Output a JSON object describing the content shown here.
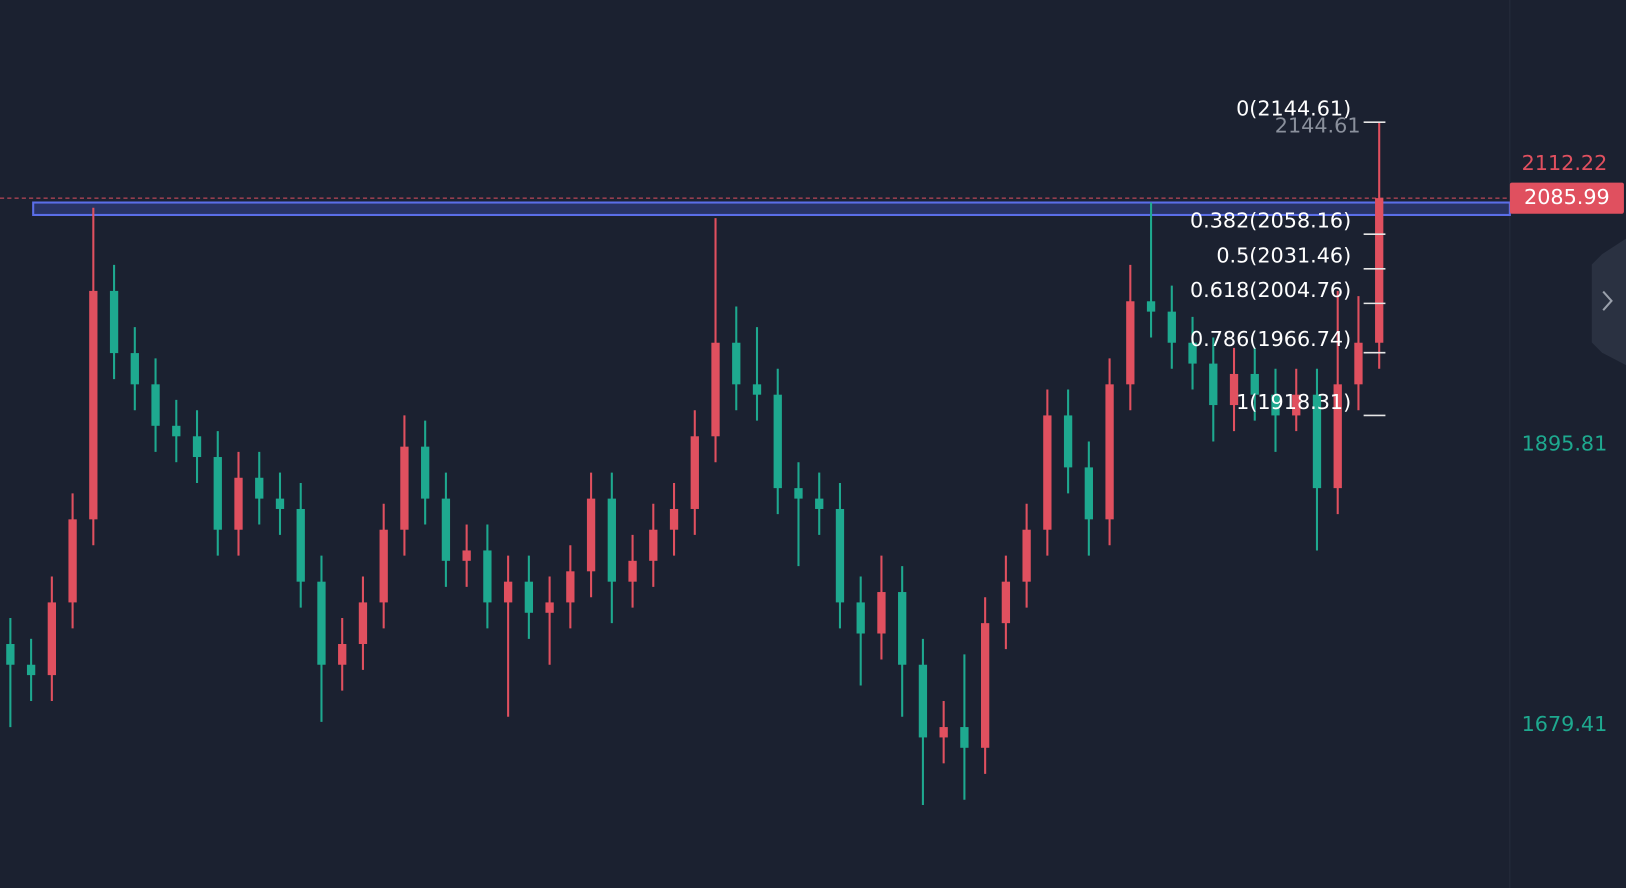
{
  "chart_data": {
    "type": "candlestick",
    "categories": [
      null,
      null,
      null,
      null,
      null,
      null,
      null,
      null,
      null,
      null,
      null,
      null,
      null,
      null,
      null,
      null,
      null,
      null,
      null,
      null,
      null,
      null,
      null,
      null,
      null,
      null,
      null,
      null,
      null,
      null,
      null,
      null,
      null,
      null,
      null,
      null,
      null,
      null,
      null,
      null,
      null,
      null,
      null,
      null,
      null,
      null,
      null,
      null,
      null,
      null,
      null,
      null,
      null,
      null,
      null,
      null,
      null,
      null,
      null,
      null,
      null,
      null,
      null,
      null,
      null,
      null,
      null
    ],
    "open": [
      1741.9,
      1725.9,
      1717.9,
      1774.0,
      1838.1,
      2014.4,
      1966.4,
      1942.3,
      1910.3,
      1902.2,
      1886.2,
      1830.1,
      1870.2,
      1854.1,
      1846.1,
      1790.0,
      1725.9,
      1741.9,
      1774.0,
      1830.1,
      1894.2,
      1854.1,
      1806.1,
      1814.1,
      1774.0,
      1790.0,
      1766.0,
      1774.0,
      1798.0,
      1854.1,
      1790.0,
      1806.1,
      1830.1,
      1846.1,
      1902.2,
      1974.4,
      1942.3,
      1934.3,
      1862.2,
      1854.1,
      1846.1,
      1774.0,
      1750.0,
      1782.0,
      1725.9,
      1669.8,
      1677.8,
      1661.8,
      1758.0,
      1790.0,
      1830.1,
      1918.3,
      1878.2,
      1838.1,
      1942.3,
      2006.4,
      1998.4,
      1974.4,
      1958.3,
      1926.3,
      1950.3,
      1934.3,
      1918.3,
      1934.3,
      1862.2,
      1942.3,
      1974.4
    ],
    "high": [
      1762.0,
      1745.9,
      1794.0,
      1858.1,
      2078.6,
      2034.5,
      1986.4,
      1962.3,
      1930.3,
      1922.3,
      1906.2,
      1890.2,
      1890.2,
      1874.2,
      1866.2,
      1810.1,
      1762.0,
      1794.0,
      1850.1,
      1918.3,
      1914.3,
      1874.2,
      1834.1,
      1834.1,
      1810.1,
      1810.1,
      1794.0,
      1818.1,
      1874.2,
      1874.2,
      1826.1,
      1850.1,
      1866.2,
      1922.3,
      2070.6,
      2002.4,
      1986.4,
      1954.3,
      1882.2,
      1874.2,
      1866.2,
      1794.0,
      1810.1,
      1802.0,
      1745.9,
      1697.9,
      1733.9,
      1778.0,
      1810.1,
      1850.1,
      1938.3,
      1938.3,
      1898.2,
      1962.3,
      2034.5,
      2082.6,
      2018.5,
      1994.4,
      1978.4,
      1970.4,
      1970.4,
      1954.3,
      1954.3,
      1954.3,
      2014.4,
      2010.4,
      2144.61
    ],
    "low": [
      1677.8,
      1697.9,
      1697.9,
      1754.0,
      1818.1,
      1946.3,
      1922.3,
      1890.2,
      1882.2,
      1866.2,
      1810.1,
      1810.1,
      1834.1,
      1826.1,
      1770.0,
      1681.8,
      1705.9,
      1721.9,
      1754.0,
      1810.1,
      1834.1,
      1786.0,
      1786.0,
      1754.0,
      1685.8,
      1745.9,
      1725.9,
      1754.0,
      1778.0,
      1758.0,
      1770.0,
      1786.0,
      1810.1,
      1826.1,
      1882.2,
      1922.3,
      1914.3,
      1842.1,
      1802.0,
      1826.1,
      1754.0,
      1709.9,
      1729.9,
      1685.8,
      1617.7,
      1649.8,
      1621.7,
      1641.7,
      1737.9,
      1770.0,
      1810.1,
      1858.1,
      1810.1,
      1818.1,
      1922.3,
      1978.4,
      1954.3,
      1938.3,
      1898.2,
      1906.2,
      1914.3,
      1890.2,
      1906.2,
      1814.1,
      1842.1,
      1922.3,
      1954.3
    ],
    "close": [
      1725.9,
      1717.9,
      1774.0,
      1838.1,
      2014.4,
      1966.4,
      1942.3,
      1910.3,
      1902.2,
      1886.2,
      1830.1,
      1870.2,
      1854.1,
      1846.1,
      1790.0,
      1725.9,
      1741.9,
      1774.0,
      1830.1,
      1894.2,
      1854.1,
      1806.1,
      1814.1,
      1774.0,
      1790.0,
      1766.0,
      1774.0,
      1798.0,
      1854.1,
      1790.0,
      1806.1,
      1830.1,
      1846.1,
      1902.2,
      1974.4,
      1942.3,
      1934.3,
      1862.2,
      1854.1,
      1846.1,
      1774.0,
      1750.0,
      1782.0,
      1725.9,
      1669.8,
      1677.8,
      1661.8,
      1758.0,
      1790.0,
      1830.1,
      1918.3,
      1878.2,
      1838.1,
      1942.3,
      2006.4,
      1998.4,
      1974.4,
      1958.3,
      1926.3,
      1950.3,
      1934.3,
      1918.3,
      1934.3,
      1862.2,
      1942.3,
      1974.4,
      2085.99
    ],
    "up_color": "#e0505f",
    "down_color": "#1ea98f",
    "ylim": [
      1553.6,
      2238.9
    ],
    "yticks": [
      2112.22,
      1895.81,
      1679.41
    ],
    "current_price": 2085.99,
    "zone": [
      2073.0,
      2082.6
    ],
    "high_marker": 2144.61,
    "fib_levels": [
      {
        "value": 2144.61,
        "label": "0(2144.61)"
      },
      {
        "value": 2058.16,
        "label": "0.382(2058.16)"
      },
      {
        "value": 2031.46,
        "label": "0.5(2031.46)"
      },
      {
        "value": 2004.76,
        "label": "0.618(2004.76)"
      },
      {
        "value": 1966.74,
        "label": "0.786(1966.74)"
      },
      {
        "value": 1918.31,
        "label": "1(1918.31)"
      }
    ]
  }
}
